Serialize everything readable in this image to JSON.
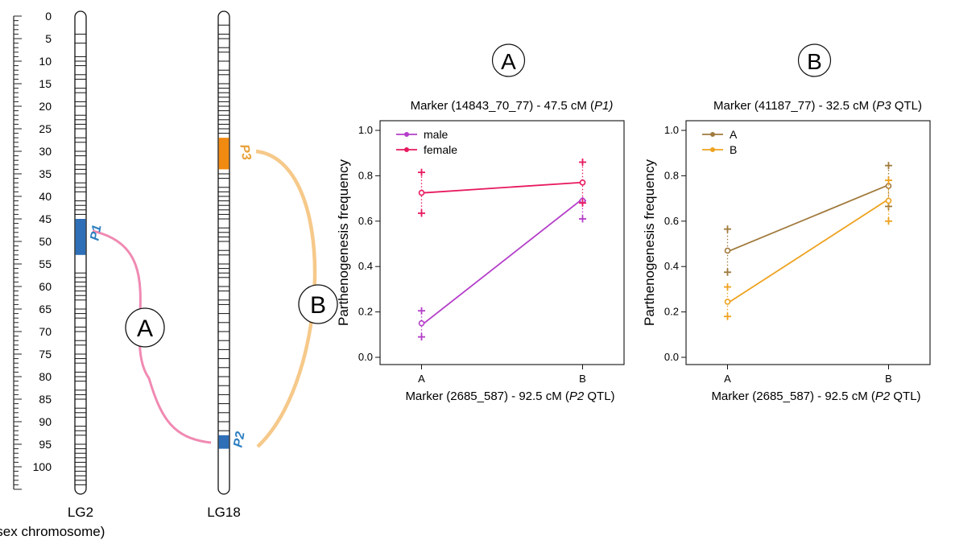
{
  "colors": {
    "male": "#b43ec9",
    "female": "#e8185f",
    "seriesA": "#a07a3c",
    "seriesB": "#eea21f",
    "qtl_blue": "#2e6fb7",
    "qtl_orange": "#f08a10",
    "link_pink": "#f08ab2",
    "link_orange": "#f6c98a",
    "label_orange": "#e8a038",
    "label_blue": "#2e7fc1"
  },
  "map": {
    "scale_ticks": [
      "0",
      "5",
      "10",
      "15",
      "20",
      "25",
      "30",
      "35",
      "40",
      "45",
      "50",
      "55",
      "60",
      "65",
      "70",
      "75",
      "80",
      "85",
      "90",
      "95",
      "100"
    ],
    "scale_max_cm": 105,
    "lg2": {
      "label": "LG2",
      "sublabel": "(sex chromosome)",
      "length_cm": 105,
      "markers_cm": [
        4,
        6,
        9,
        10,
        11,
        13,
        14,
        16,
        17,
        19,
        20,
        22,
        23,
        24,
        25,
        27,
        28,
        30,
        31,
        33,
        34,
        35,
        37,
        38,
        39,
        41,
        42,
        43,
        44,
        57,
        58,
        59,
        60,
        61,
        62,
        63,
        65,
        66,
        67,
        69,
        70,
        72,
        73,
        75,
        76,
        77,
        79,
        80,
        81,
        83,
        84,
        85,
        87,
        88,
        89,
        91,
        92,
        93,
        95,
        96,
        97,
        98,
        99,
        100,
        101,
        102,
        103,
        104
      ]
    },
    "lg18": {
      "label": "LG18",
      "length_cm": 105,
      "markers_cm": [
        2,
        4,
        5,
        7,
        8,
        10,
        12,
        13,
        15,
        16,
        17,
        18,
        19,
        20,
        21,
        22,
        23,
        24,
        25,
        26,
        35,
        36,
        38,
        39,
        40,
        41,
        42,
        43,
        44,
        45,
        47,
        48,
        49,
        50,
        52,
        53,
        55,
        56,
        57,
        58,
        60,
        61,
        63,
        64,
        66,
        68,
        70,
        72,
        74,
        76,
        78,
        80,
        82,
        84,
        86,
        88,
        90,
        92
      ]
    },
    "qtls": [
      {
        "label": "P1",
        "lg": "lg2",
        "start_cm": 45,
        "end_cm": 53
      },
      {
        "label": "P3",
        "lg": "lg18",
        "start_cm": 27,
        "end_cm": 34
      },
      {
        "label": "P2",
        "lg": "lg18",
        "start_cm": 93,
        "end_cm": 96
      }
    ],
    "links": [
      {
        "label": "A",
        "from": "P1",
        "to": "P2"
      },
      {
        "label": "B",
        "from": "P3",
        "to": "P2"
      }
    ]
  },
  "chart_data": [
    {
      "type": "line",
      "panel_label": "A",
      "title": "Marker (14843_70_77) - 47.5 cM (",
      "title_italic": "P1)",
      "xlabel": "Marker (2685_587) - 92.5 cM (",
      "xlabel_italic": "P2",
      "xlabel_suffix": " QTL)",
      "ylabel": "Parthenogenesis frequency",
      "categories": [
        "A",
        "B"
      ],
      "yticks": [
        "0.0",
        "0.2",
        "0.4",
        "0.6",
        "0.8",
        "1.0"
      ],
      "ylim": [
        0,
        1.0
      ],
      "legend_position": "top-left",
      "series": [
        {
          "name": "male",
          "values": [
            0.15,
            0.69
          ],
          "upper": [
            0.205,
            0.69
          ],
          "lower": [
            0.09,
            0.61
          ]
        },
        {
          "name": "female",
          "values": [
            0.725,
            0.77
          ],
          "upper": [
            0.815,
            0.86
          ],
          "lower": [
            0.635,
            0.68
          ]
        }
      ]
    },
    {
      "type": "line",
      "panel_label": "B",
      "title": "Marker (41187_77) - 32.5 cM (",
      "title_italic": "P3",
      "title_suffix": " QTL)",
      "xlabel": "Marker (2685_587) - 92.5 cM (",
      "xlabel_italic": "P2",
      "xlabel_suffix": " QTL)",
      "ylabel": "Parthenogenesis frequency",
      "categories": [
        "A",
        "B"
      ],
      "yticks": [
        "0.0",
        "0.2",
        "0.4",
        "0.6",
        "0.8",
        "1.0"
      ],
      "ylim": [
        0,
        1.0
      ],
      "legend_position": "top-left",
      "series": [
        {
          "name": "A",
          "values": [
            0.47,
            0.755
          ],
          "upper": [
            0.565,
            0.845
          ],
          "lower": [
            0.375,
            0.665
          ]
        },
        {
          "name": "B",
          "values": [
            0.245,
            0.69
          ],
          "upper": [
            0.31,
            0.78
          ],
          "lower": [
            0.18,
            0.6
          ]
        }
      ]
    }
  ]
}
